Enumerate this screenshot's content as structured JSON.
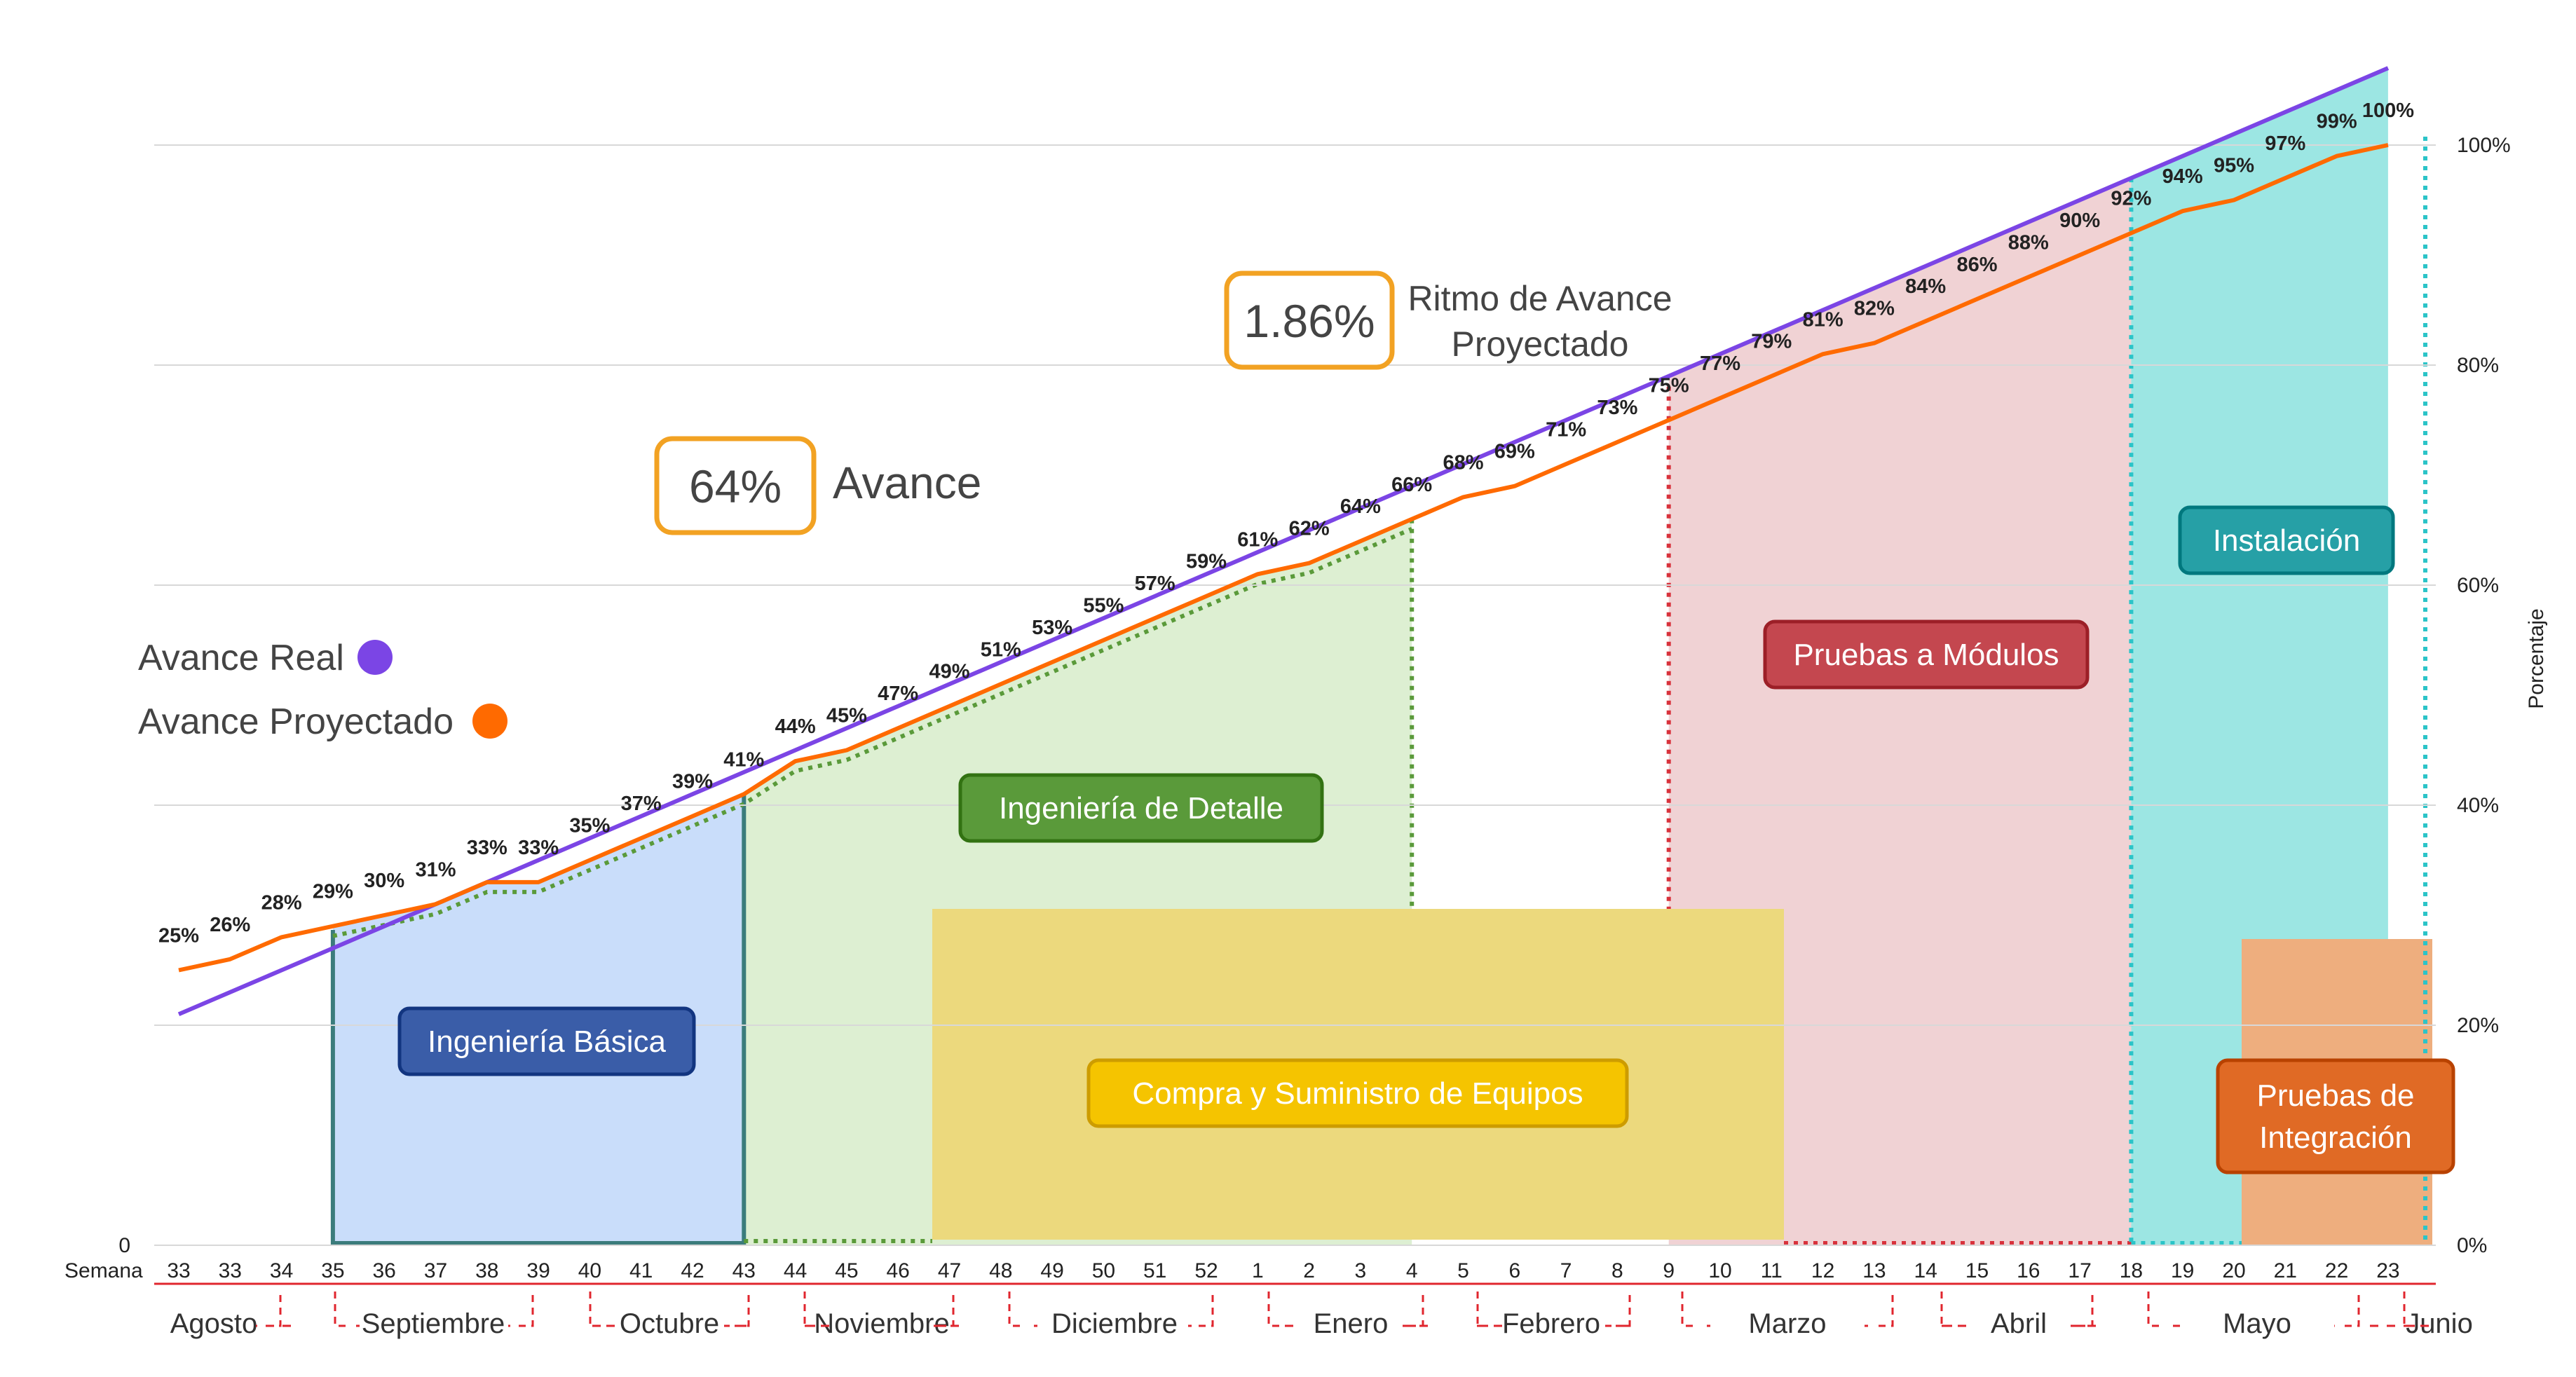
{
  "chart_data": {
    "type": "line",
    "x_label": "Semana",
    "y_label": "Porcentaje",
    "y_ticks": [
      "0%",
      "20%",
      "40%",
      "60%",
      "80%",
      "100%"
    ],
    "y_left_zero": "0",
    "ylim": [
      0,
      100
    ],
    "x": [
      "33",
      "33",
      "34",
      "35",
      "36",
      "37",
      "38",
      "39",
      "40",
      "41",
      "42",
      "43",
      "44",
      "45",
      "46",
      "47",
      "48",
      "49",
      "50",
      "51",
      "52",
      "1",
      "2",
      "3",
      "4",
      "5",
      "6",
      "7",
      "8",
      "9",
      "10",
      "11",
      "12",
      "13",
      "14",
      "15",
      "16",
      "17",
      "18",
      "19",
      "20",
      "21",
      "22",
      "23"
    ],
    "series": [
      {
        "name": "Avance Real",
        "color": "#7B45E5",
        "values": [
          21,
          23,
          25,
          27,
          29,
          31,
          33,
          35,
          37,
          39,
          41,
          43,
          45,
          47,
          49,
          51,
          53,
          55,
          57,
          59,
          61,
          63,
          65,
          67,
          69,
          71,
          73,
          75,
          77,
          79,
          81,
          83,
          85,
          87,
          89,
          91,
          93,
          95,
          97,
          99,
          101,
          103,
          105,
          107
        ]
      },
      {
        "name": "Avance Proyectado",
        "color": "#FF6A00",
        "values": [
          25,
          26,
          28,
          29,
          30,
          31,
          33,
          33,
          35,
          37,
          39,
          41,
          44,
          45,
          47,
          49,
          51,
          53,
          55,
          57,
          59,
          61,
          62,
          64,
          66,
          68,
          69,
          71,
          73,
          75,
          77,
          79,
          81,
          82,
          84,
          86,
          88,
          90,
          92,
          94,
          95,
          97,
          99,
          100
        ],
        "data_labels": [
          "25%",
          "26%",
          "28%",
          "29%",
          "30%",
          "31%",
          "33%",
          "33%",
          "35%",
          "37%",
          "39%",
          "41%",
          "44%",
          "45%",
          "47%",
          "49%",
          "51%",
          "53%",
          "55%",
          "57%",
          "59%",
          "61%",
          "62%",
          "64%",
          "66%",
          "68%",
          "69%",
          "71%",
          "73%",
          "75%",
          "77%",
          "79%",
          "81%",
          "82%",
          "84%",
          "86%",
          "88%",
          "90%",
          "92%",
          "94%",
          "95%",
          "97%",
          "99%",
          "100%"
        ]
      }
    ],
    "months": [
      "Agosto",
      "Septiembre",
      "Octubre",
      "Noviembre",
      "Diciembre",
      "Enero",
      "Febrero",
      "Marzo",
      "Abril",
      "Mayo",
      "Junio"
    ],
    "legend": [
      {
        "label": "Avance Real",
        "color": "#7B45E5"
      },
      {
        "label": "Avance Proyectado",
        "color": "#FF6A00"
      }
    ],
    "phases": [
      {
        "label": "Ingeniería Básica",
        "fill": "#C9DDFA",
        "box": "#3A5DA8",
        "edge": "#3B7C7C"
      },
      {
        "label": "Ingeniería de Detalle",
        "fill": "#DDEFD2",
        "box": "#5A9A3A",
        "edge": "#5A9A3A"
      },
      {
        "label": "Compra y Suministro de Equipos",
        "fill": "#ECD97D",
        "box": "#F5C400",
        "edge": "#D4A900"
      },
      {
        "label": "Pruebas a Módulos",
        "fill": "#F0D2D4",
        "box": "#C4474F",
        "edge": "#D8323C"
      },
      {
        "label": "Instalación",
        "fill": "#9CE6E3",
        "box": "#26A0A6",
        "edge": "#2BC4C8"
      },
      {
        "label": "Pruebas de Integración",
        "label_lines": [
          "Pruebas de",
          "Integración"
        ],
        "fill": "#EEAE7E",
        "box": "#E06A25",
        "edge": "#E06A25"
      }
    ],
    "kpis": [
      {
        "value": "64%",
        "label_lines": [
          "Avance"
        ],
        "border": "#F2A223"
      },
      {
        "value": "1.86%",
        "label_lines": [
          "Ritmo de Avance",
          "Proyectado"
        ],
        "border": "#F2A223"
      }
    ]
  }
}
